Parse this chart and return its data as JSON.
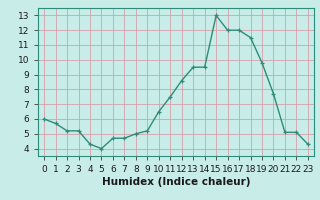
{
  "x": [
    0,
    1,
    2,
    3,
    4,
    5,
    6,
    7,
    8,
    9,
    10,
    11,
    12,
    13,
    14,
    15,
    16,
    17,
    18,
    19,
    20,
    21,
    22,
    23
  ],
  "y": [
    6.0,
    5.7,
    5.2,
    5.2,
    4.3,
    4.0,
    4.7,
    4.7,
    5.0,
    5.2,
    6.5,
    7.5,
    8.6,
    9.5,
    9.5,
    13.0,
    12.0,
    12.0,
    11.5,
    9.8,
    7.7,
    5.1,
    5.1,
    4.3
  ],
  "line_color": "#2e8b7a",
  "marker": "+",
  "bg_color": "#c8ede8",
  "grid_color": "#a8d5ce",
  "xlabel": "Humidex (Indice chaleur)",
  "xlim": [
    -0.5,
    23.5
  ],
  "ylim": [
    3.5,
    13.5
  ],
  "yticks": [
    4,
    5,
    6,
    7,
    8,
    9,
    10,
    11,
    12,
    13
  ],
  "xtick_labels": [
    "0",
    "1",
    "2",
    "3",
    "4",
    "5",
    "6",
    "7",
    "8",
    "9",
    "10",
    "11",
    "12",
    "13",
    "14",
    "15",
    "16",
    "17",
    "18",
    "19",
    "20",
    "21",
    "22",
    "23"
  ],
  "font_color": "#1a1a1a",
  "label_fontsize": 7.5,
  "tick_fontsize": 6.5
}
